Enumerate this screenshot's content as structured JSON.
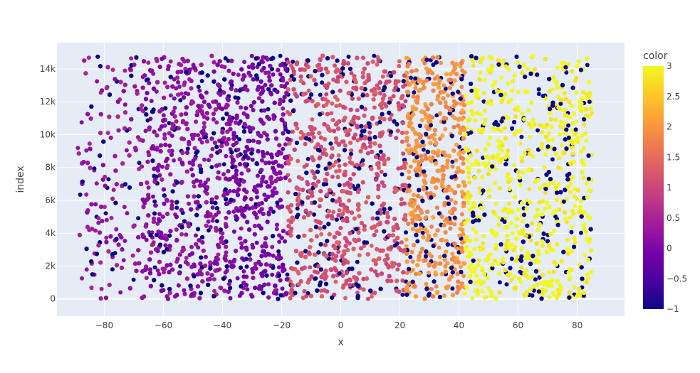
{
  "chart_data": {
    "type": "scatter",
    "title": "",
    "xlabel": "x",
    "ylabel": "index",
    "xlim": [
      -96,
      96
    ],
    "ylim": [
      -1050,
      15600
    ],
    "x_ticks": [
      -80,
      -60,
      -40,
      -20,
      0,
      20,
      40,
      60,
      80
    ],
    "x_tick_labels": [
      "−80",
      "−60",
      "−40",
      "−20",
      "0",
      "20",
      "40",
      "60",
      "80"
    ],
    "y_ticks": [
      0,
      2000,
      4000,
      6000,
      8000,
      10000,
      12000,
      14000
    ],
    "y_tick_labels": [
      "0",
      "2k",
      "4k",
      "6k",
      "8k",
      "10k",
      "12k",
      "14k"
    ],
    "grid": true,
    "marker_size": 6,
    "n_points": 15000,
    "index_range": [
      0,
      14800
    ],
    "colorbar": {
      "title": "color",
      "range": [
        -1,
        3
      ],
      "ticks": [
        -1,
        -0.5,
        0,
        0.5,
        1,
        1.5,
        2,
        2.5,
        3
      ],
      "tick_labels": [
        "−1",
        "−0.5",
        "0",
        "0.5",
        "1",
        "1.5",
        "2",
        "2.5",
        "3"
      ],
      "colorscale": "plasma",
      "colorscale_stops": [
        "#0d0887",
        "#46039f",
        "#7201a8",
        "#9c179e",
        "#bd3786",
        "#d8576b",
        "#ed7953",
        "#fb9f3a",
        "#fdca26",
        "#f0f921"
      ]
    },
    "bands": [
      {
        "x_range": [
          -89,
          -67
        ],
        "color_value": 0.35,
        "fraction": 0.04
      },
      {
        "x_range": [
          -67,
          -38
        ],
        "color_value": 0.2,
        "fraction": 0.17
      },
      {
        "x_range": [
          -38,
          -18
        ],
        "color_value": 0.05,
        "fraction": 0.13
      },
      {
        "x_range": [
          -18,
          22
        ],
        "color_value": 1.15,
        "fraction": 0.26
      },
      {
        "x_range": [
          22,
          42
        ],
        "color_value": 1.95,
        "fraction": 0.16
      },
      {
        "x_range": [
          42,
          85
        ],
        "color_value": 3.0,
        "fraction": 0.24
      }
    ],
    "outlier_color_value": -1,
    "outlier_fraction": 0.17
  },
  "colors": {
    "plot_background": "#e5ecf6",
    "grid": "#ffffff",
    "paper": "#ffffff"
  }
}
